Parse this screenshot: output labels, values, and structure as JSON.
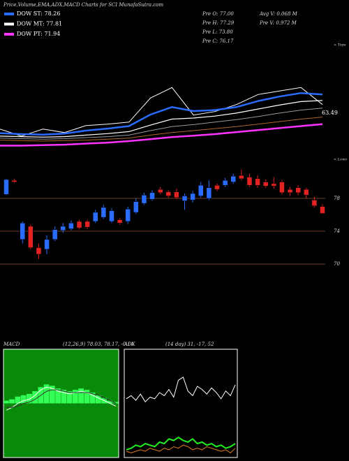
{
  "title": "Price,Volume,EMA,ADX,MACD Charts for SCI MunafaSutra.com",
  "legend": [
    {
      "label": "DOW ST: 78.26",
      "color": "#2a6cff"
    },
    {
      "label": "DOW MT: 77.81",
      "color": "#ffffff"
    },
    {
      "label": "DOW PT: 71.94",
      "color": "#ff33ff"
    }
  ],
  "stats_left": [
    "Pre   O: 77.00",
    "Pre   H: 77.29",
    "Pre   L: 73.80",
    "Pre   C: 76.17"
  ],
  "stats_right": [
    "Avg V: 0.068  M",
    "Pre   V: 0.972  M"
  ],
  "chart_data": [
    {
      "type": "line",
      "ylim": [
        63,
        86
      ],
      "annotation": "63.49",
      "tops_label": "< Tops",
      "lows_label": "< Lows",
      "series": [
        {
          "color": "#ffffff",
          "width": 1,
          "values": [
            68.6,
            67.2,
            68.6,
            67.9,
            69.3,
            69.6,
            70.0,
            74.8,
            76.9,
            71.4,
            72.1,
            73.5,
            75.5,
            76.2,
            76.9,
            73.5
          ]
        },
        {
          "color": "#2a6cff",
          "width": 2.5,
          "values": [
            67.8,
            67.6,
            67.5,
            67.7,
            68.3,
            68.7,
            69.2,
            71.5,
            73.0,
            72.2,
            72.4,
            73.0,
            74.2,
            75.1,
            75.8,
            75.5
          ]
        },
        {
          "color": "#ffffff",
          "width": 1.2,
          "values": [
            67.2,
            67.1,
            67.0,
            67.1,
            67.4,
            67.7,
            68.1,
            69.4,
            70.6,
            70.8,
            71.2,
            71.8,
            72.6,
            73.4,
            74.1,
            74.3
          ]
        },
        {
          "color": "#999999",
          "width": 1,
          "values": [
            66.8,
            66.7,
            66.6,
            66.7,
            66.9,
            67.1,
            67.4,
            68.3,
            69.1,
            69.5,
            70.0,
            70.5,
            71.1,
            71.8,
            72.4,
            72.8
          ]
        },
        {
          "color": "#b0662a",
          "width": 1,
          "values": [
            66.4,
            66.3,
            66.2,
            66.3,
            66.4,
            66.6,
            66.8,
            67.4,
            67.9,
            68.3,
            68.7,
            69.1,
            69.6,
            70.1,
            70.6,
            71.0
          ]
        },
        {
          "color": "#ff33ff",
          "width": 2.5,
          "values": [
            65.3,
            65.3,
            65.4,
            65.5,
            65.7,
            65.9,
            66.2,
            66.6,
            67.0,
            67.3,
            67.6,
            68.0,
            68.4,
            68.8,
            69.2,
            69.6
          ]
        }
      ]
    },
    {
      "type": "candlestick",
      "ylim": [
        60.9,
        82.6
      ],
      "yticks": [
        78,
        74,
        70
      ],
      "grid": true,
      "grid_color": "#6b3b2a",
      "up_color": "#2a6cff",
      "down_color": "#e32222",
      "open": [
        78.5,
        80.2,
        73.0,
        74.6,
        72.0,
        71.8,
        73.0,
        74.1,
        74.3,
        75.2,
        75.2,
        75.2,
        75.7,
        75.2,
        75.4,
        75.2,
        76.3,
        77.4,
        77.9,
        79.1,
        78.8,
        78.8,
        77.7,
        77.8,
        78.3,
        78.0,
        79.6,
        79.6,
        80.0,
        80.8,
        80.6,
        80.4,
        80.0,
        79.8,
        80.0,
        79.1,
        79.3,
        79.1,
        77.8,
        77.0
      ],
      "high": [
        80.4,
        80.4,
        75.2,
        74.8,
        72.5,
        73.5,
        74.6,
        75.0,
        75.3,
        75.4,
        75.4,
        76.6,
        77.2,
        76.8,
        75.6,
        77.0,
        78.0,
        78.7,
        79.0,
        79.4,
        79.0,
        79.2,
        78.6,
        78.9,
        80.0,
        80.2,
        79.8,
        80.5,
        81.0,
        81.5,
        81.0,
        80.8,
        80.3,
        80.6,
        80.2,
        79.4,
        79.6,
        79.3,
        78.2,
        77.29
      ],
      "low": [
        78.4,
        79.9,
        72.5,
        71.8,
        70.6,
        71.2,
        72.8,
        73.8,
        74.1,
        74.2,
        74.3,
        75.0,
        75.5,
        75.0,
        74.8,
        74.9,
        76.1,
        77.2,
        77.7,
        78.5,
        78.1,
        77.9,
        76.6,
        77.5,
        78.1,
        77.8,
        78.9,
        79.4,
        79.8,
        80.2,
        79.4,
        79.3,
        79.3,
        79.2,
        78.5,
        78.3,
        78.4,
        78.0,
        76.9,
        76.2
      ],
      "close": [
        80.3,
        80.0,
        75.0,
        72.0,
        71.2,
        73.0,
        74.2,
        74.6,
        75.0,
        74.4,
        74.5,
        76.3,
        76.9,
        76.5,
        75.0,
        76.7,
        77.6,
        78.4,
        78.7,
        78.7,
        78.3,
        78.1,
        78.3,
        78.6,
        79.6,
        79.3,
        79.1,
        80.2,
        80.7,
        80.4,
        79.6,
        79.6,
        79.5,
        79.5,
        78.7,
        78.7,
        78.7,
        78.4,
        77.1,
        76.17
      ]
    },
    {
      "type": "macd",
      "label": "MACD",
      "params": "(12,26,9) 78.03, 78.17, -0.14",
      "ylim": [
        -4,
        4
      ],
      "background": "#0a8a0a",
      "series": [
        {
          "color": "#ffffff",
          "values": [
            -0.5,
            -0.3,
            0.0,
            0.2,
            0.3,
            0.6,
            1.0,
            1.2,
            1.1,
            0.9,
            0.8,
            0.7,
            0.8,
            0.9,
            0.8,
            0.6,
            0.4,
            0.2,
            0.0,
            -0.2
          ]
        },
        {
          "color": "#333333",
          "values": [
            -0.3,
            -0.3,
            -0.2,
            0,
            0.1,
            0.3,
            0.6,
            0.9,
            1.0,
            1.0,
            0.9,
            0.8,
            0.8,
            0.8,
            0.8,
            0.7,
            0.6,
            0.4,
            0.2,
            0.0
          ]
        }
      ],
      "histogram": {
        "color": "#33ff55",
        "values": [
          0.2,
          0.3,
          0.5,
          0.6,
          0.7,
          0.9,
          1.2,
          1.4,
          1.3,
          1.1,
          1.0,
          0.9,
          1.0,
          1.1,
          1.0,
          0.8,
          0.6,
          0.4,
          0.2,
          0.1
        ]
      }
    },
    {
      "type": "adx",
      "label": "ADX",
      "params": "(14  day) 31, -17, 52",
      "ylim": [
        0,
        70
      ],
      "series": [
        {
          "color": "#ffffff",
          "values": [
            38,
            40,
            37,
            41,
            36,
            39,
            38,
            42,
            40,
            44,
            39,
            50,
            52,
            43,
            40,
            46,
            44,
            41,
            45,
            42,
            38,
            43,
            40,
            47
          ]
        },
        {
          "color": "#22ee22",
          "values": [
            5,
            6,
            8,
            7,
            9,
            8,
            7,
            10,
            9,
            12,
            11,
            13,
            11,
            10,
            12,
            9,
            10,
            8,
            9,
            7,
            8,
            6,
            7,
            9
          ]
        },
        {
          "color": "#e07b20",
          "values": [
            4,
            3,
            4,
            5,
            4,
            6,
            5,
            4,
            6,
            5,
            7,
            6,
            8,
            7,
            5,
            6,
            5,
            7,
            6,
            5,
            4,
            5,
            3,
            6
          ]
        }
      ]
    }
  ]
}
